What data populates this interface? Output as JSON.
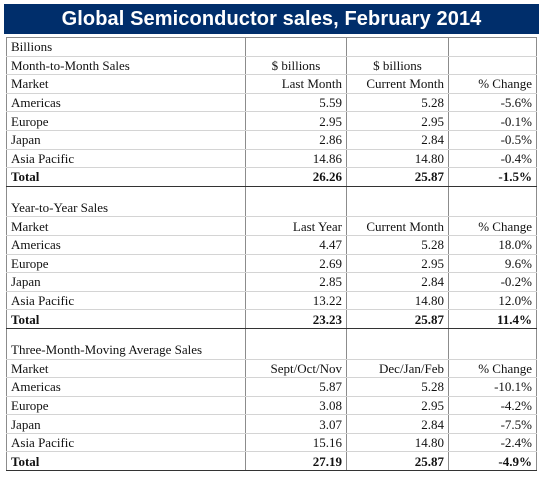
{
  "title": "Global Semiconductor sales, February 2014",
  "billions_label": "Billions",
  "sections": {
    "month": {
      "name": "Month-to-Month Sales",
      "unit_label": "$ billions",
      "headers": [
        "Market",
        "Last Month",
        "Current Month",
        "% Change"
      ],
      "rows": [
        [
          "Americas",
          "5.59",
          "5.28",
          "-5.6%"
        ],
        [
          "Europe",
          "2.95",
          "2.95",
          "-0.1%"
        ],
        [
          "Japan",
          "2.86",
          "2.84",
          "-0.5%"
        ],
        [
          "Asia Pacific",
          "14.86",
          "14.80",
          "-0.4%"
        ]
      ],
      "total": [
        "Total",
        "26.26",
        "25.87",
        "-1.5%"
      ]
    },
    "year": {
      "name": "Year-to-Year Sales",
      "headers": [
        "Market",
        "Last Year",
        "Current Month",
        "% Change"
      ],
      "rows": [
        [
          "Americas",
          "4.47",
          "5.28",
          "18.0%"
        ],
        [
          "Europe",
          "2.69",
          "2.95",
          "9.6%"
        ],
        [
          "Japan",
          "2.85",
          "2.84",
          "-0.2%"
        ],
        [
          "Asia Pacific",
          "13.22",
          "14.80",
          "12.0%"
        ]
      ],
      "total": [
        "Total",
        "23.23",
        "25.87",
        "11.4%"
      ]
    },
    "three_month": {
      "name": "Three-Month-Moving Average Sales",
      "headers": [
        "Market",
        "Sept/Oct/Nov",
        "Dec/Jan/Feb",
        "% Change"
      ],
      "rows": [
        [
          "Americas",
          "5.87",
          "5.28",
          "-10.1%"
        ],
        [
          "Europe",
          "3.08",
          "2.95",
          "-4.2%"
        ],
        [
          "Japan",
          "3.07",
          "2.84",
          "-7.5%"
        ],
        [
          "Asia Pacific",
          "15.16",
          "14.80",
          "-2.4%"
        ]
      ],
      "total": [
        "Total",
        "27.19",
        "25.87",
        "-4.9%"
      ]
    }
  },
  "colors": {
    "title_background": "#002e6b",
    "title_text": "#ffffff"
  }
}
